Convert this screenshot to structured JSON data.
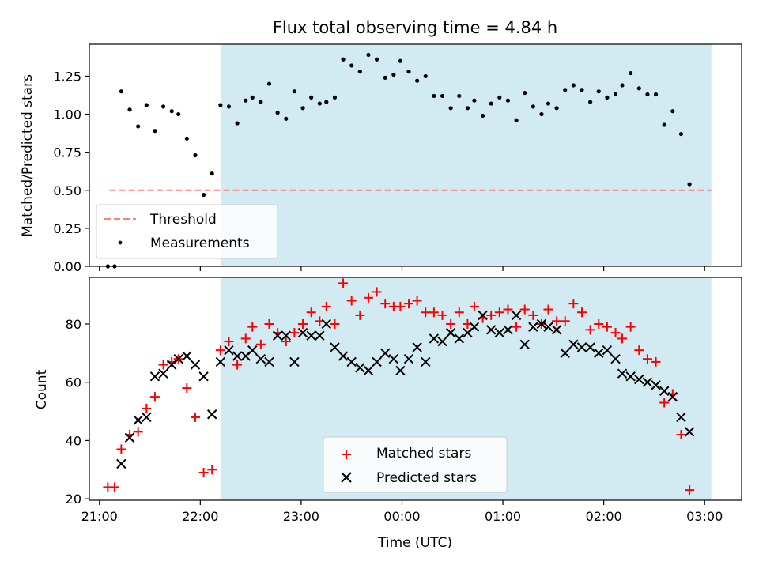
{
  "chart_data": [
    {
      "type": "scatter",
      "title": "Flux total observing time = 4.84 h",
      "xlabel": "",
      "ylabel": "Matched/Predicted stars",
      "ylim": [
        0,
        1.46
      ],
      "xlim": [
        "20:54",
        "03:22"
      ],
      "yticks": [
        "0.00",
        "0.25",
        "0.50",
        "0.75",
        "1.00",
        "1.25"
      ],
      "yticks_values": [
        0,
        0.25,
        0.5,
        0.75,
        1.0,
        1.25
      ],
      "xticks_values": [
        "21:00",
        "22:00",
        "23:00",
        "00:00",
        "01:00",
        "02:00",
        "03:00"
      ],
      "shaded_interval": [
        "22:12",
        "03:04"
      ],
      "shade_color": "#add8e6",
      "legend_position": "lower-left",
      "series": [
        {
          "name": "Threshold",
          "style": "dashed-line",
          "color": "#ff7f7f",
          "x": [
            "21:06",
            "03:04"
          ],
          "y": [
            0.5,
            0.5
          ]
        },
        {
          "name": "Measurements",
          "style": "dot",
          "color": "#000000",
          "points": [
            [
              "21:05",
              0.0
            ],
            [
              "21:09",
              0.0
            ],
            [
              "21:13",
              1.15
            ],
            [
              "21:18",
              1.03
            ],
            [
              "21:23",
              0.92
            ],
            [
              "21:28",
              1.06
            ],
            [
              "21:33",
              0.89
            ],
            [
              "21:38",
              1.05
            ],
            [
              "21:43",
              1.02
            ],
            [
              "21:47",
              1.0
            ],
            [
              "21:52",
              0.84
            ],
            [
              "21:57",
              0.73
            ],
            [
              "22:02",
              0.47
            ],
            [
              "22:07",
              0.61
            ],
            [
              "22:12",
              1.06
            ],
            [
              "22:17",
              1.05
            ],
            [
              "22:22",
              0.94
            ],
            [
              "22:27",
              1.09
            ],
            [
              "22:31",
              1.11
            ],
            [
              "22:36",
              1.08
            ],
            [
              "22:41",
              1.2
            ],
            [
              "22:46",
              1.01
            ],
            [
              "22:51",
              0.97
            ],
            [
              "22:56",
              1.15
            ],
            [
              "23:01",
              1.04
            ],
            [
              "23:06",
              1.11
            ],
            [
              "23:11",
              1.07
            ],
            [
              "23:15",
              1.08
            ],
            [
              "23:20",
              1.11
            ],
            [
              "23:25",
              1.36
            ],
            [
              "23:30",
              1.32
            ],
            [
              "23:35",
              1.28
            ],
            [
              "23:40",
              1.39
            ],
            [
              "23:45",
              1.36
            ],
            [
              "23:50",
              1.24
            ],
            [
              "23:55",
              1.26
            ],
            [
              "23:59",
              1.35
            ],
            [
              "00:04",
              1.28
            ],
            [
              "00:09",
              1.22
            ],
            [
              "00:14",
              1.25
            ],
            [
              "00:19",
              1.12
            ],
            [
              "00:24",
              1.12
            ],
            [
              "00:29",
              1.04
            ],
            [
              "00:34",
              1.12
            ],
            [
              "00:39",
              1.04
            ],
            [
              "00:43",
              1.09
            ],
            [
              "00:48",
              0.99
            ],
            [
              "00:53",
              1.07
            ],
            [
              "00:58",
              1.11
            ],
            [
              "01:03",
              1.09
            ],
            [
              "01:08",
              0.96
            ],
            [
              "01:13",
              1.14
            ],
            [
              "01:18",
              1.05
            ],
            [
              "01:23",
              1.0
            ],
            [
              "01:27",
              1.07
            ],
            [
              "01:32",
              1.04
            ],
            [
              "01:37",
              1.16
            ],
            [
              "01:42",
              1.19
            ],
            [
              "01:47",
              1.16
            ],
            [
              "01:52",
              1.08
            ],
            [
              "01:57",
              1.15
            ],
            [
              "02:02",
              1.11
            ],
            [
              "02:07",
              1.13
            ],
            [
              "02:11",
              1.19
            ],
            [
              "02:16",
              1.27
            ],
            [
              "02:21",
              1.17
            ],
            [
              "02:26",
              1.13
            ],
            [
              "02:31",
              1.13
            ],
            [
              "02:36",
              0.93
            ],
            [
              "02:41",
              1.02
            ],
            [
              "02:46",
              0.87
            ],
            [
              "02:51",
              0.54
            ]
          ]
        }
      ]
    },
    {
      "type": "scatter",
      "title": "",
      "xlabel": "Time (UTC)",
      "ylabel": "Count",
      "ylim": [
        19.5,
        96
      ],
      "xlim": [
        "20:54",
        "03:22"
      ],
      "yticks": [
        "20",
        "40",
        "60",
        "80"
      ],
      "yticks_values": [
        20,
        40,
        60,
        80
      ],
      "xticks": [
        "21:00",
        "22:00",
        "23:00",
        "00:00",
        "01:00",
        "02:00",
        "03:00"
      ],
      "xticks_values": [
        "21:00",
        "22:00",
        "23:00",
        "00:00",
        "01:00",
        "02:00",
        "03:00"
      ],
      "shaded_interval": [
        "22:12",
        "03:04"
      ],
      "shade_color": "#add8e6",
      "legend_position": "lower-center",
      "series": [
        {
          "name": "Matched stars",
          "style": "plus",
          "color": "#ff0000",
          "points": [
            [
              "21:05",
              24
            ],
            [
              "21:09",
              24
            ],
            [
              "21:13",
              37
            ],
            [
              "21:18",
              42
            ],
            [
              "21:23",
              43
            ],
            [
              "21:28",
              51
            ],
            [
              "21:33",
              55
            ],
            [
              "21:38",
              66
            ],
            [
              "21:43",
              67
            ],
            [
              "21:47",
              68
            ],
            [
              "21:52",
              58
            ],
            [
              "21:57",
              48
            ],
            [
              "22:02",
              29
            ],
            [
              "22:07",
              30
            ],
            [
              "22:12",
              71
            ],
            [
              "22:17",
              74
            ],
            [
              "22:22",
              66
            ],
            [
              "22:27",
              75
            ],
            [
              "22:31",
              79
            ],
            [
              "22:36",
              73
            ],
            [
              "22:41",
              80
            ],
            [
              "22:46",
              77
            ],
            [
              "22:51",
              74
            ],
            [
              "22:56",
              77
            ],
            [
              "23:01",
              80
            ],
            [
              "23:06",
              84
            ],
            [
              "23:11",
              81
            ],
            [
              "23:15",
              86
            ],
            [
              "23:20",
              80
            ],
            [
              "23:25",
              94
            ],
            [
              "23:30",
              88
            ],
            [
              "23:35",
              83
            ],
            [
              "23:40",
              89
            ],
            [
              "23:45",
              91
            ],
            [
              "23:50",
              87
            ],
            [
              "23:55",
              86
            ],
            [
              "23:59",
              86
            ],
            [
              "00:04",
              87
            ],
            [
              "00:09",
              88
            ],
            [
              "00:14",
              84
            ],
            [
              "00:19",
              84
            ],
            [
              "00:24",
              83
            ],
            [
              "00:29",
              80
            ],
            [
              "00:34",
              84
            ],
            [
              "00:39",
              80
            ],
            [
              "00:43",
              86
            ],
            [
              "00:48",
              82
            ],
            [
              "00:53",
              83
            ],
            [
              "00:58",
              84
            ],
            [
              "01:03",
              85
            ],
            [
              "01:08",
              79
            ],
            [
              "01:13",
              85
            ],
            [
              "01:18",
              83
            ],
            [
              "01:23",
              80
            ],
            [
              "01:27",
              85
            ],
            [
              "01:32",
              81
            ],
            [
              "01:37",
              81
            ],
            [
              "01:42",
              87
            ],
            [
              "01:47",
              84
            ],
            [
              "01:52",
              78
            ],
            [
              "01:57",
              80
            ],
            [
              "02:02",
              79
            ],
            [
              "02:07",
              77
            ],
            [
              "02:11",
              75
            ],
            [
              "02:16",
              79
            ],
            [
              "02:21",
              71
            ],
            [
              "02:26",
              68
            ],
            [
              "02:31",
              67
            ],
            [
              "02:36",
              53
            ],
            [
              "02:41",
              56
            ],
            [
              "02:46",
              42
            ],
            [
              "02:51",
              23
            ]
          ]
        },
        {
          "name": "Predicted stars",
          "style": "x",
          "color": "#000000",
          "points": [
            [
              "21:13",
              32
            ],
            [
              "21:18",
              41
            ],
            [
              "21:23",
              47
            ],
            [
              "21:28",
              48
            ],
            [
              "21:33",
              62
            ],
            [
              "21:38",
              63
            ],
            [
              "21:43",
              66
            ],
            [
              "21:47",
              68
            ],
            [
              "21:52",
              69
            ],
            [
              "21:57",
              66
            ],
            [
              "22:02",
              62
            ],
            [
              "22:07",
              49
            ],
            [
              "22:12",
              67
            ],
            [
              "22:17",
              71
            ],
            [
              "22:22",
              69
            ],
            [
              "22:27",
              69
            ],
            [
              "22:31",
              71
            ],
            [
              "22:36",
              68
            ],
            [
              "22:41",
              67
            ],
            [
              "22:46",
              76
            ],
            [
              "22:51",
              76
            ],
            [
              "22:56",
              67
            ],
            [
              "23:01",
              77
            ],
            [
              "23:06",
              76
            ],
            [
              "23:11",
              76
            ],
            [
              "23:15",
              80
            ],
            [
              "23:20",
              72
            ],
            [
              "23:25",
              69
            ],
            [
              "23:30",
              67
            ],
            [
              "23:35",
              65
            ],
            [
              "23:40",
              64
            ],
            [
              "23:45",
              67
            ],
            [
              "23:50",
              70
            ],
            [
              "23:55",
              68
            ],
            [
              "23:59",
              64
            ],
            [
              "00:04",
              68
            ],
            [
              "00:09",
              72
            ],
            [
              "00:14",
              67
            ],
            [
              "00:19",
              75
            ],
            [
              "00:24",
              74
            ],
            [
              "00:29",
              77
            ],
            [
              "00:34",
              75
            ],
            [
              "00:39",
              77
            ],
            [
              "00:43",
              79
            ],
            [
              "00:48",
              83
            ],
            [
              "00:53",
              78
            ],
            [
              "00:58",
              77
            ],
            [
              "01:03",
              78
            ],
            [
              "01:08",
              83
            ],
            [
              "01:13",
              73
            ],
            [
              "01:18",
              79
            ],
            [
              "01:23",
              80
            ],
            [
              "01:27",
              79
            ],
            [
              "01:32",
              78
            ],
            [
              "01:37",
              70
            ],
            [
              "01:42",
              73
            ],
            [
              "01:47",
              72
            ],
            [
              "01:52",
              72
            ],
            [
              "01:57",
              70
            ],
            [
              "02:02",
              71
            ],
            [
              "02:07",
              68
            ],
            [
              "02:11",
              63
            ],
            [
              "02:16",
              62
            ],
            [
              "02:21",
              61
            ],
            [
              "02:26",
              60
            ],
            [
              "02:31",
              59
            ],
            [
              "02:36",
              57
            ],
            [
              "02:41",
              55
            ],
            [
              "02:46",
              48
            ],
            [
              "02:51",
              43
            ]
          ]
        }
      ]
    }
  ]
}
